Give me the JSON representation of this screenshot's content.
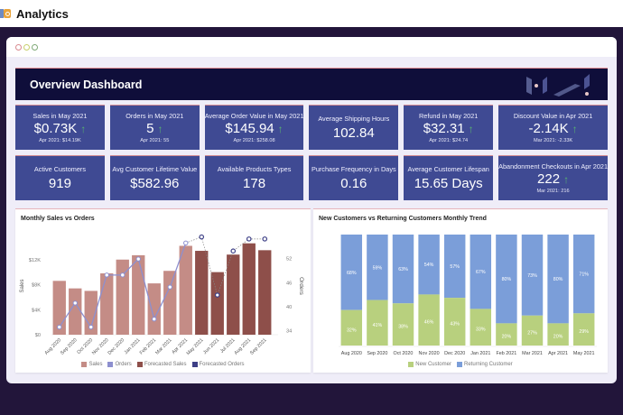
{
  "app": {
    "title": "Analytics",
    "icon": "analytics-app-icon"
  },
  "window": {
    "controls": [
      "close",
      "minimize",
      "maximize"
    ]
  },
  "dashboard": {
    "title": "Overview Dashboard",
    "logo": "brand-logo-icon"
  },
  "kpis": [
    {
      "title": "Sales in May 2021",
      "value": "$0.73K",
      "trend": "up",
      "sub": "Apr 2021: $14.19K"
    },
    {
      "title": "Orders in May 2021",
      "value": "5",
      "trend": "up",
      "sub": "Apr 2021: 55"
    },
    {
      "title": "Average Order Value in May 2021",
      "value": "$145.94",
      "trend": "up",
      "sub": "Apr 2021: $258.08"
    },
    {
      "title": "Average Shipping Hours",
      "value": "102.84",
      "trend": null,
      "sub": null
    },
    {
      "title": "Refund in May 2021",
      "value": "$32.31",
      "trend": "up",
      "sub": "Apr 2021: $24.74"
    },
    {
      "title": "Discount Value in Apr 2021",
      "value": "-2.14K",
      "trend": "up",
      "sub": "Mar 2021: -2.33K"
    },
    {
      "title": "Active Customers",
      "value": "919",
      "trend": null,
      "sub": null
    },
    {
      "title": "Avg Customer Lifetime Value",
      "value": "$582.96",
      "trend": null,
      "sub": null
    },
    {
      "title": "Available Products Types",
      "value": "178",
      "trend": null,
      "sub": null
    },
    {
      "title": "Purchase Frequency in Days",
      "value": "0.16",
      "trend": null,
      "sub": null
    },
    {
      "title": "Average Customer Lifespan",
      "value": "15.65 Days",
      "trend": null,
      "sub": null
    },
    {
      "title": "Abandonment Checkouts in Apr 2021",
      "value": "222",
      "trend": "up",
      "sub": "Mar 2021: 216"
    }
  ],
  "trend_arrow": "↑",
  "colors": {
    "sales": "#c48c86",
    "forecast_sales": "#8e4f4a",
    "orders": "#8d8fcf",
    "forecast_orders": "#3d3f86",
    "new_customer": "#b8d07e",
    "returning_customer": "#7b9ed9",
    "kpi_bg": "#3f4a93",
    "header_bg": "#0f0e3a"
  },
  "chart_data": [
    {
      "type": "bar",
      "title": "Monthly Sales vs Orders",
      "categories": [
        "Aug 2020",
        "Sep 2020",
        "Oct 2020",
        "Nov 2020",
        "Dec 2020",
        "Jan 2021",
        "Feb 2021",
        "Mar 2021",
        "Apr 2021",
        "May 2021",
        "Jun 2021",
        "Jul 2021",
        "Aug 2021",
        "Sep 2021"
      ],
      "series": [
        {
          "name": "Sales",
          "axis": "left",
          "kind": "bar",
          "values": [
            8.6,
            7.4,
            7.0,
            9.8,
            12.0,
            12.7,
            8.2,
            10.2,
            14.2,
            null,
            null,
            null,
            null,
            null
          ]
        },
        {
          "name": "Forecasted Sales",
          "axis": "left",
          "kind": "bar",
          "values": [
            null,
            null,
            null,
            null,
            null,
            null,
            null,
            null,
            null,
            13.4,
            10.0,
            12.8,
            14.6,
            13.5
          ]
        },
        {
          "name": "Orders",
          "axis": "right",
          "kind": "line",
          "values": [
            34,
            40,
            34,
            47,
            47,
            51,
            36,
            44,
            55,
            null,
            null,
            null,
            null,
            null
          ]
        },
        {
          "name": "Forecasted Orders",
          "axis": "right",
          "kind": "line",
          "values": [
            null,
            null,
            null,
            null,
            null,
            null,
            null,
            null,
            55,
            56.5,
            42,
            53,
            56,
            56
          ]
        }
      ],
      "ylabel": "Sales",
      "y2label": "Orders",
      "yticks": [
        "$0",
        "$4K",
        "$8K",
        "$12K"
      ],
      "ytick_values": [
        0,
        4,
        8,
        12
      ],
      "ylim": [
        0,
        16
      ],
      "y2ticks": [
        "34",
        "40",
        "46",
        "52"
      ],
      "y2tick_values": [
        34,
        40,
        46,
        52
      ],
      "y2lim": [
        33,
        58
      ],
      "legend": [
        "Sales",
        "Orders",
        "Forecasted Sales",
        "Forecasted Orders"
      ],
      "legend_position": "bottom"
    },
    {
      "type": "bar",
      "stacked": true,
      "percent": true,
      "title": "New Customers vs Returning Customers Monthly Trend",
      "categories": [
        "Aug 2020",
        "Sep 2020",
        "Oct 2020",
        "Nov 2020",
        "Dec 2020",
        "Jan 2021",
        "Feb 2021",
        "Mar 2021",
        "Apr 2021",
        "May 2021"
      ],
      "series": [
        {
          "name": "New Customer",
          "values": [
            32,
            41,
            38,
            46,
            43,
            33,
            20,
            27,
            20,
            29
          ],
          "labels": [
            "32%",
            "41%",
            "38%",
            "46%",
            "43%",
            "33%",
            "20%",
            "27%",
            "20%",
            "29%"
          ]
        },
        {
          "name": "Returning Customer",
          "values": [
            68,
            59,
            63,
            54,
            57,
            67,
            80,
            73,
            80,
            71
          ],
          "labels": [
            "68%",
            "59%",
            "63%",
            "54%",
            "57%",
            "67%",
            "80%",
            "73%",
            "80%",
            "71%"
          ]
        }
      ],
      "ylim": [
        0,
        100
      ],
      "legend": [
        "New Customer",
        "Returning Customer"
      ],
      "legend_position": "bottom"
    }
  ]
}
